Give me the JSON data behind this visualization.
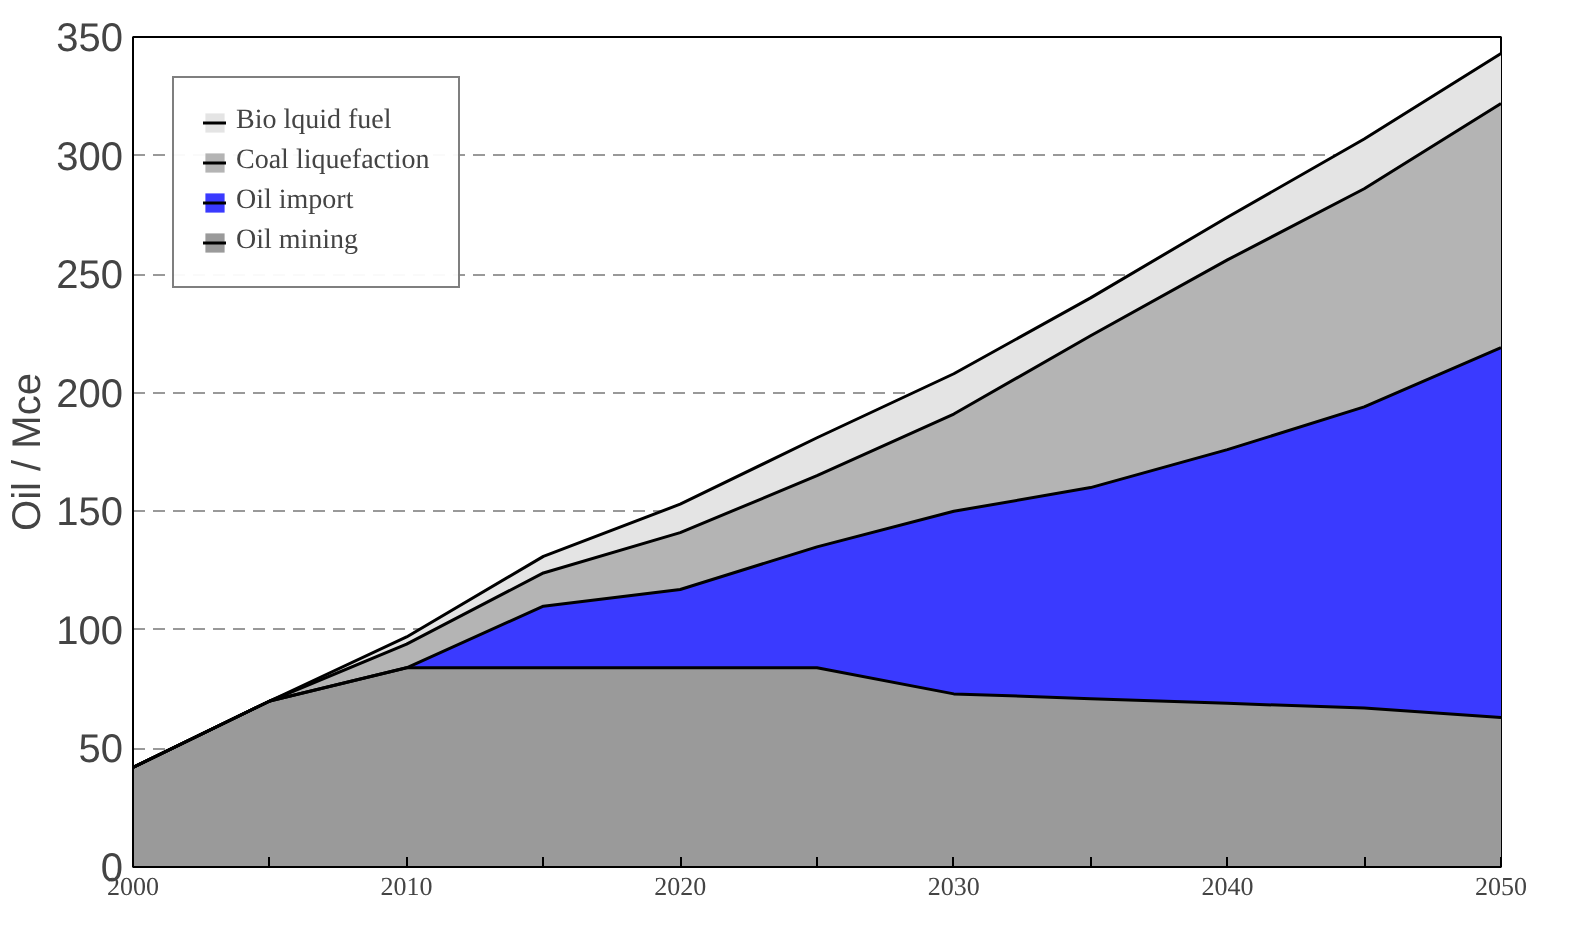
{
  "chart_data": {
    "type": "area",
    "stacked": true,
    "ylabel": "Oil / Mce",
    "x": [
      2000,
      2005,
      2010,
      2015,
      2020,
      2025,
      2030,
      2035,
      2040,
      2045,
      2050
    ],
    "series": [
      {
        "name": "Oil mining",
        "color": "#9a9a9a",
        "values": [
          42,
          70,
          84,
          84,
          84,
          84,
          73,
          71,
          69,
          67,
          63
        ]
      },
      {
        "name": "Oil import",
        "color": "#3a3aff",
        "values": [
          0,
          0,
          0,
          26,
          33,
          51,
          77,
          89,
          107,
          127,
          156
        ]
      },
      {
        "name": "Coal liquefaction",
        "color": "#b4b4b4",
        "values": [
          0,
          0,
          10,
          14,
          24,
          30,
          41,
          64,
          80,
          92,
          103
        ]
      },
      {
        "name": "Bio lquid fuel",
        "color": "#e4e4e4",
        "values": [
          0,
          0,
          3,
          7,
          12,
          16,
          17,
          16,
          18,
          21,
          21
        ]
      }
    ],
    "xlim": [
      2000,
      2050
    ],
    "ylim": [
      0,
      350
    ],
    "xticks": [
      2000,
      {
        "value": 2005,
        "label": null
      },
      2010,
      {
        "value": 2015,
        "label": null
      },
      2020,
      {
        "value": 2025,
        "label": null
      },
      2030,
      {
        "value": 2035,
        "label": null
      },
      2040,
      {
        "value": 2045,
        "label": null
      },
      2050
    ],
    "yticks": [
      0,
      50,
      100,
      150,
      200,
      250,
      300,
      350
    ],
    "grid": "y",
    "legend": "top left"
  }
}
